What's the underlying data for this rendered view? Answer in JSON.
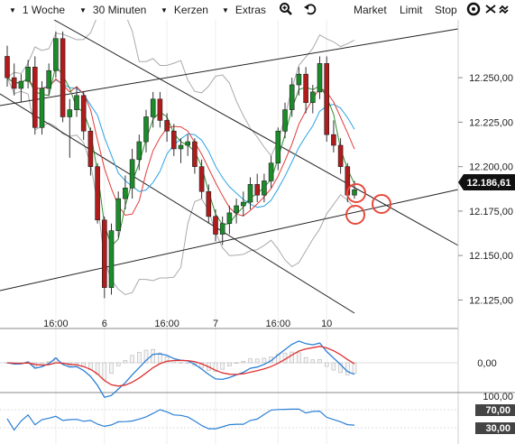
{
  "toolbar": {
    "range": "1 Woche",
    "interval": "30 Minuten",
    "chart_type": "Kerzen",
    "extras": "Extras",
    "zoom_icon": "zoom-in-icon",
    "undo_icon": "undo-icon",
    "market": "Market",
    "limit": "Limit",
    "stop": "Stop",
    "settings_icon": "settings-icon"
  },
  "colors": {
    "candle_up": "#1a8c2a",
    "candle_down": "#b01c1c",
    "sma_fast": "#2f8f2f",
    "sma_mid": "#e23a3a",
    "sma_slow": "#2aa3e6",
    "bollinger": "#aaaaaa",
    "trendline": "#222222",
    "highlight_circle": "#e64a3c"
  },
  "chart_data": {
    "type": "candlestick",
    "instrument_last_price": "12.186,61",
    "y_ticks": [
      "12.250,00",
      "12.225,00",
      "12.200,00",
      "12.175,00",
      "12.150,00",
      "12.125,00"
    ],
    "y_tick_values": [
      12250,
      12225,
      12200,
      12175,
      12150,
      12125
    ],
    "ylim": [
      12110,
      12280
    ],
    "x_ticks": [
      {
        "label": "16:00",
        "index": 7
      },
      {
        "label": "6",
        "index": 14
      },
      {
        "label": "16:00",
        "index": 23
      },
      {
        "label": "7",
        "index": 30
      },
      {
        "label": "16:00",
        "index": 39
      },
      {
        "label": "10",
        "index": 46
      }
    ],
    "ohlc": [
      [
        12262,
        12268,
        12245,
        12250
      ],
      [
        12250,
        12258,
        12240,
        12244
      ],
      [
        12244,
        12252,
        12236,
        12248
      ],
      [
        12248,
        12260,
        12244,
        12256
      ],
      [
        12256,
        12262,
        12218,
        12222
      ],
      [
        12222,
        12248,
        12218,
        12244
      ],
      [
        12244,
        12258,
        12240,
        12254
      ],
      [
        12254,
        12276,
        12250,
        12272
      ],
      [
        12272,
        12276,
        12225,
        12228
      ],
      [
        12228,
        12238,
        12205,
        12232
      ],
      [
        12232,
        12245,
        12228,
        12240
      ],
      [
        12240,
        12242,
        12215,
        12220
      ],
      [
        12220,
        12222,
        12195,
        12200
      ],
      [
        12200,
        12202,
        12168,
        12170
      ],
      [
        12170,
        12172,
        12126,
        12132
      ],
      [
        12132,
        12168,
        12128,
        12164
      ],
      [
        12164,
        12186,
        12160,
        12182
      ],
      [
        12182,
        12195,
        12176,
        12188
      ],
      [
        12188,
        12210,
        12182,
        12204
      ],
      [
        12204,
        12218,
        12198,
        12214
      ],
      [
        12214,
        12232,
        12208,
        12228
      ],
      [
        12228,
        12242,
        12222,
        12238
      ],
      [
        12238,
        12242,
        12222,
        12226
      ],
      [
        12226,
        12230,
        12214,
        12220
      ],
      [
        12220,
        12224,
        12206,
        12210
      ],
      [
        12210,
        12216,
        12202,
        12212
      ],
      [
        12212,
        12218,
        12206,
        12214
      ],
      [
        12214,
        12216,
        12196,
        12200
      ],
      [
        12200,
        12204,
        12182,
        12186
      ],
      [
        12186,
        12190,
        12168,
        12172
      ],
      [
        12172,
        12176,
        12158,
        12162
      ],
      [
        12162,
        12172,
        12156,
        12168
      ],
      [
        12168,
        12178,
        12162,
        12174
      ],
      [
        12174,
        12182,
        12168,
        12178
      ],
      [
        12178,
        12186,
        12172,
        12180
      ],
      [
        12180,
        12194,
        12176,
        12190
      ],
      [
        12190,
        12196,
        12180,
        12184
      ],
      [
        12184,
        12196,
        12180,
        12192
      ],
      [
        12192,
        12206,
        12188,
        12202
      ],
      [
        12202,
        12222,
        12198,
        12220
      ],
      [
        12220,
        12236,
        12216,
        12232
      ],
      [
        12232,
        12250,
        12228,
        12246
      ],
      [
        12246,
        12256,
        12240,
        12252
      ],
      [
        12252,
        12256,
        12230,
        12236
      ],
      [
        12236,
        12246,
        12230,
        12242
      ],
      [
        12242,
        12262,
        12238,
        12258
      ],
      [
        12258,
        12262,
        12214,
        12218
      ],
      [
        12218,
        12226,
        12208,
        12212
      ],
      [
        12212,
        12216,
        12196,
        12200
      ],
      [
        12200,
        12202,
        12180,
        12184
      ],
      [
        12184,
        12192,
        12182,
        12187
      ]
    ],
    "macd_axis_label": "0,00",
    "rsi_axis_labels": [
      "100,00",
      "70,00",
      "30,00"
    ]
  }
}
